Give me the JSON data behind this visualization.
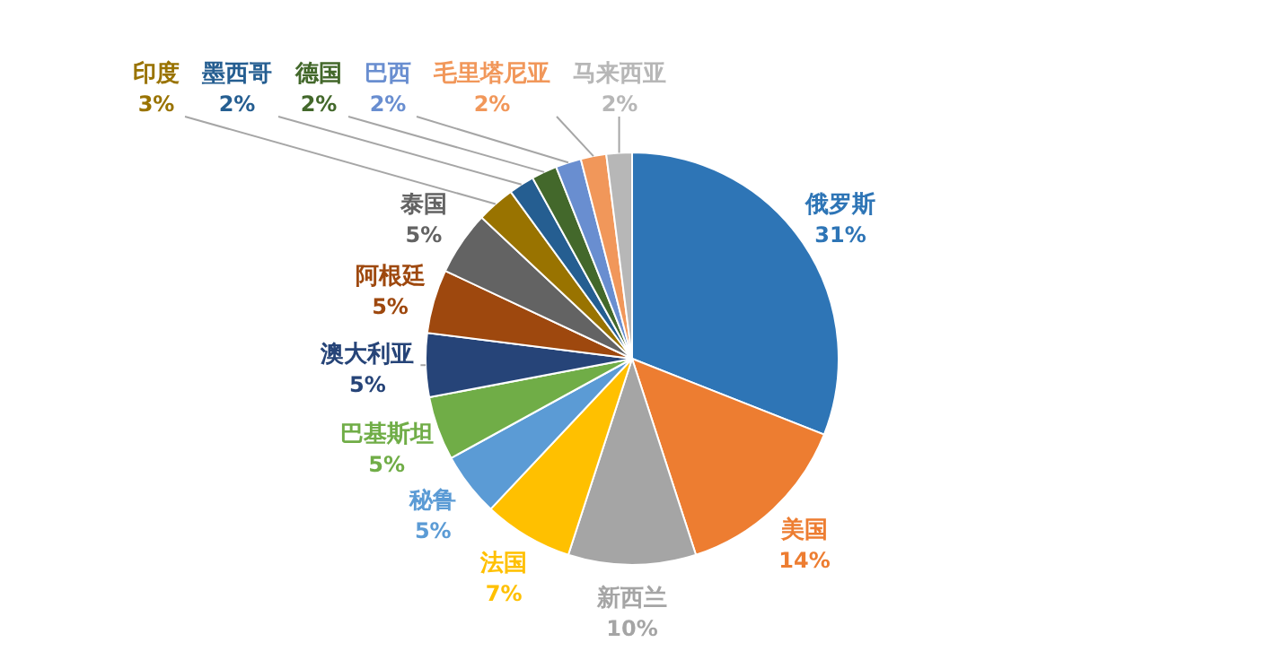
{
  "chart_data": {
    "type": "pie",
    "categories": [
      "俄罗斯",
      "美国",
      "新西兰",
      "法国",
      "秘鲁",
      "巴基斯坦",
      "澳大利亚",
      "阿根廷",
      "泰国",
      "印度",
      "墨西哥",
      "德国",
      "巴西",
      "毛里塔尼亚",
      "马来西亚"
    ],
    "values": [
      31,
      14,
      10,
      7,
      5,
      5,
      5,
      5,
      5,
      3,
      2,
      2,
      2,
      2,
      2
    ],
    "value_labels": [
      "31%",
      "14%",
      "10%",
      "7%",
      "5%",
      "5%",
      "5%",
      "5%",
      "5%",
      "3%",
      "2%",
      "2%",
      "2%",
      "2%",
      "2%"
    ],
    "colors": [
      "#2e75b6",
      "#ed7d31",
      "#a5a5a5",
      "#ffc000",
      "#5b9bd5",
      "#70ad47",
      "#264478",
      "#9e480e",
      "#636363",
      "#997300",
      "#255e91",
      "#43682b",
      "#698ed0",
      "#f1975a",
      "#b7b7b7"
    ]
  }
}
